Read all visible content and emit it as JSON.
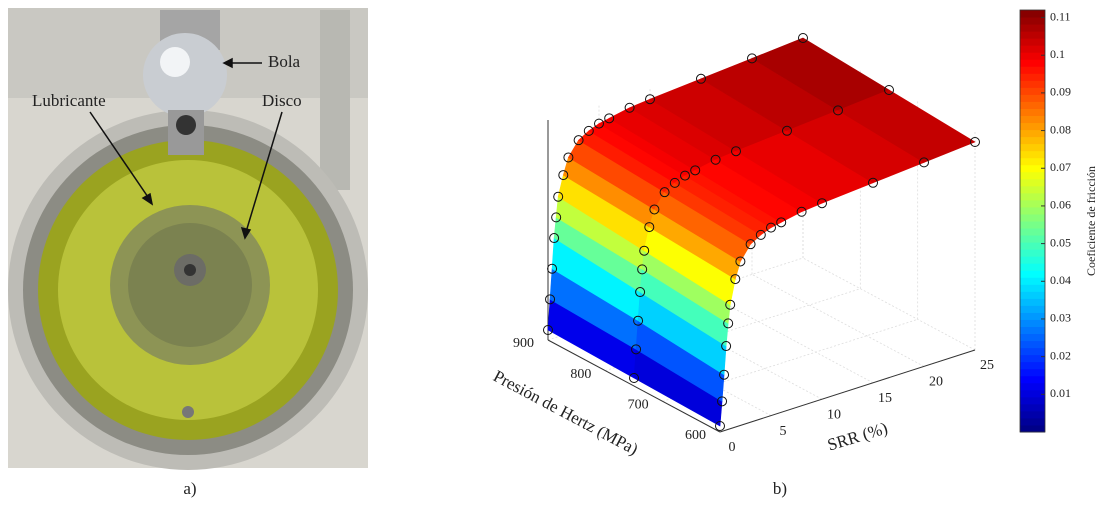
{
  "panel_a": {
    "labels": [
      "Bola",
      "Lubricante",
      "Disco"
    ],
    "caption": "a)"
  },
  "chart_data": {
    "type": "surface",
    "caption": "b)",
    "xlabel": "SRR (%)",
    "ylabel": "Presión de Hertz (MPa)",
    "colorbar_label": "Coeficiente de fricción",
    "x": [
      0,
      0.2,
      0.4,
      0.6,
      0.8,
      1,
      1.5,
      2,
      3,
      4,
      5,
      6,
      8,
      10,
      15,
      20,
      25
    ],
    "series": [
      {
        "pressure": 900,
        "values": [
          0.005,
          0.02,
          0.035,
          0.05,
          0.06,
          0.07,
          0.08,
          0.088,
          0.095,
          0.098,
          0.1,
          0.101,
          0.103,
          0.104,
          0.106,
          0.108,
          0.11
        ]
      },
      {
        "pressure": 750,
        "values": [
          0.004,
          0.018,
          0.032,
          0.046,
          0.057,
          0.066,
          0.077,
          0.085,
          0.092,
          0.095,
          0.097,
          0.098,
          0.1,
          0.101,
          0.103,
          0.105,
          0.107
        ]
      },
      {
        "pressure": 600,
        "values": [
          0.003,
          0.015,
          0.028,
          0.042,
          0.053,
          0.062,
          0.074,
          0.082,
          0.089,
          0.092,
          0.094,
          0.095,
          0.097,
          0.098,
          0.1,
          0.102,
          0.104
        ]
      }
    ],
    "xlim": [
      0,
      25
    ],
    "xticks": [
      0,
      5,
      10,
      15,
      20,
      25
    ],
    "ylim": [
      600,
      900
    ],
    "yticks": [
      600,
      700,
      800,
      900
    ],
    "zlim": [
      0,
      0.11
    ],
    "clim": [
      0,
      0.112
    ],
    "cticks": [
      0.01,
      0.02,
      0.03,
      0.04,
      0.05,
      0.06,
      0.07,
      0.08,
      0.09,
      0.1,
      0.11
    ],
    "colormap": "jet",
    "grid": true
  }
}
